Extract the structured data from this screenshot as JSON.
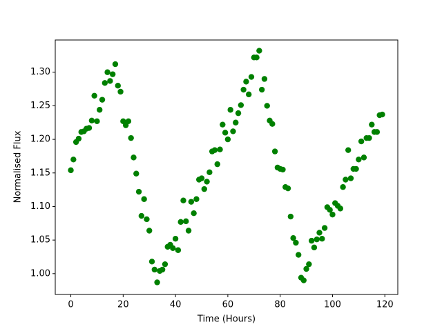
{
  "chart_data": {
    "type": "scatter",
    "x_label": "Time (Hours)",
    "y_label": "Normalised Flux",
    "color": "#008000",
    "x": [
      0,
      1,
      2,
      3,
      4,
      5,
      6,
      7,
      8,
      9,
      10,
      11,
      12,
      13,
      14,
      15,
      16,
      17,
      18,
      19,
      20,
      21,
      22,
      23,
      24,
      25,
      26,
      27,
      28,
      29,
      30,
      31,
      32,
      33,
      34,
      35,
      36,
      37,
      38,
      39,
      40,
      41,
      42,
      43,
      44,
      45,
      46,
      47,
      48,
      49,
      50,
      51,
      52,
      53,
      54,
      55,
      56,
      57,
      58,
      59,
      60,
      61,
      62,
      63,
      64,
      65,
      66,
      67,
      68,
      69,
      70,
      71,
      72,
      73,
      74,
      75,
      76,
      77,
      78,
      79,
      80,
      81,
      82,
      83,
      84,
      85,
      86,
      87,
      88,
      89,
      90,
      91,
      92,
      93,
      94,
      95,
      96,
      97,
      98,
      99,
      100,
      101,
      102,
      103,
      104,
      105,
      106,
      107,
      108,
      109,
      110,
      111,
      112,
      113,
      114,
      115,
      116,
      117,
      118,
      119
    ],
    "values": [
      1.154,
      1.17,
      1.196,
      1.201,
      1.211,
      1.212,
      1.216,
      1.217,
      1.228,
      1.265,
      1.227,
      1.244,
      1.259,
      1.284,
      1.3,
      1.287,
      1.297,
      1.312,
      1.28,
      1.271,
      1.227,
      1.221,
      1.227,
      1.202,
      1.173,
      1.149,
      1.122,
      1.086,
      1.111,
      1.081,
      1.064,
      1.018,
      1.006,
      0.987,
      1.004,
      1.006,
      1.014,
      1.04,
      1.043,
      1.038,
      1.052,
      1.035,
      1.077,
      1.109,
      1.078,
      1.064,
      1.107,
      1.09,
      1.111,
      1.14,
      1.142,
      1.126,
      1.137,
      1.151,
      1.182,
      1.184,
      1.163,
      1.185,
      1.222,
      1.21,
      1.2,
      1.244,
      1.212,
      1.225,
      1.239,
      1.251,
      1.274,
      1.286,
      1.267,
      1.293,
      1.322,
      1.322,
      1.332,
      1.274,
      1.29,
      1.25,
      1.228,
      1.223,
      1.182,
      1.158,
      1.156,
      1.155,
      1.129,
      1.127,
      1.085,
      1.053,
      1.046,
      1.028,
      0.994,
      0.99,
      1.007,
      1.014,
      1.049,
      1.039,
      1.051,
      1.061,
      1.052,
      1.068,
      1.099,
      1.095,
      1.088,
      1.105,
      1.101,
      1.097,
      1.129,
      1.14,
      1.184,
      1.142,
      1.156,
      1.156,
      1.17,
      1.197,
      1.173,
      1.202,
      1.202,
      1.222,
      1.211,
      1.211,
      1.236,
      1.237
    ],
    "xlim": [
      -5.95,
      124.95
    ],
    "ylim": [
      0.969,
      1.348
    ],
    "xticks": [
      0,
      20,
      40,
      60,
      80,
      100,
      120
    ],
    "yticks": [
      {
        "value": 1.0,
        "label": "1.00"
      },
      1.05,
      {
        "value": 1.1,
        "label": "1.10"
      },
      1.15,
      {
        "value": 1.2,
        "label": "1.20"
      },
      1.25,
      {
        "value": 1.3,
        "label": "1.30"
      }
    ],
    "grid": false
  }
}
